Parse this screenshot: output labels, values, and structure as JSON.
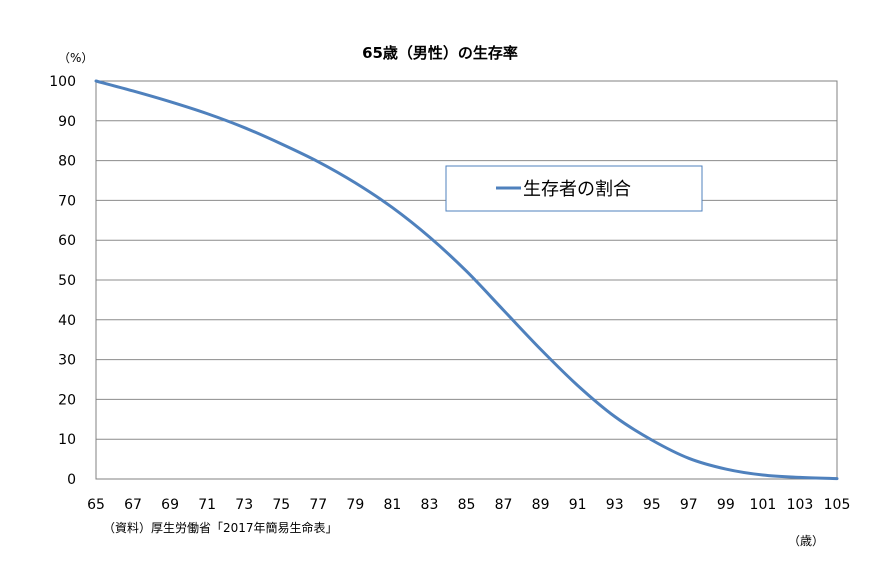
{
  "chart_data": {
    "type": "line",
    "title": "65歳（男性）の生存率",
    "y_unit_label": "（%）",
    "x_unit_label": "（歳）",
    "source": "（資料）厚生労働省「2017年簡易生命表」",
    "xlim": [
      65,
      105
    ],
    "ylim": [
      0,
      100
    ],
    "x_ticks": [
      65,
      67,
      69,
      71,
      73,
      75,
      77,
      79,
      81,
      83,
      85,
      87,
      89,
      91,
      93,
      95,
      97,
      99,
      101,
      103,
      105
    ],
    "y_ticks": [
      0,
      10,
      20,
      30,
      40,
      50,
      60,
      70,
      80,
      90,
      100
    ],
    "grid": true,
    "legend_position": "upper-center-right",
    "series": [
      {
        "name": "生存者の割合",
        "color": "#4f81bd",
        "x": [
          65,
          67,
          69,
          71,
          73,
          75,
          77,
          79,
          81,
          83,
          85,
          87,
          89,
          91,
          93,
          95,
          97,
          99,
          101,
          103,
          105
        ],
        "values": [
          100,
          97.5,
          94.8,
          91.8,
          88.3,
          84.2,
          79.7,
          74.4,
          68.2,
          60.8,
          52.2,
          42.4,
          32.6,
          23.5,
          15.7,
          9.8,
          5.2,
          2.5,
          1.0,
          0.4,
          0.1
        ]
      }
    ]
  }
}
